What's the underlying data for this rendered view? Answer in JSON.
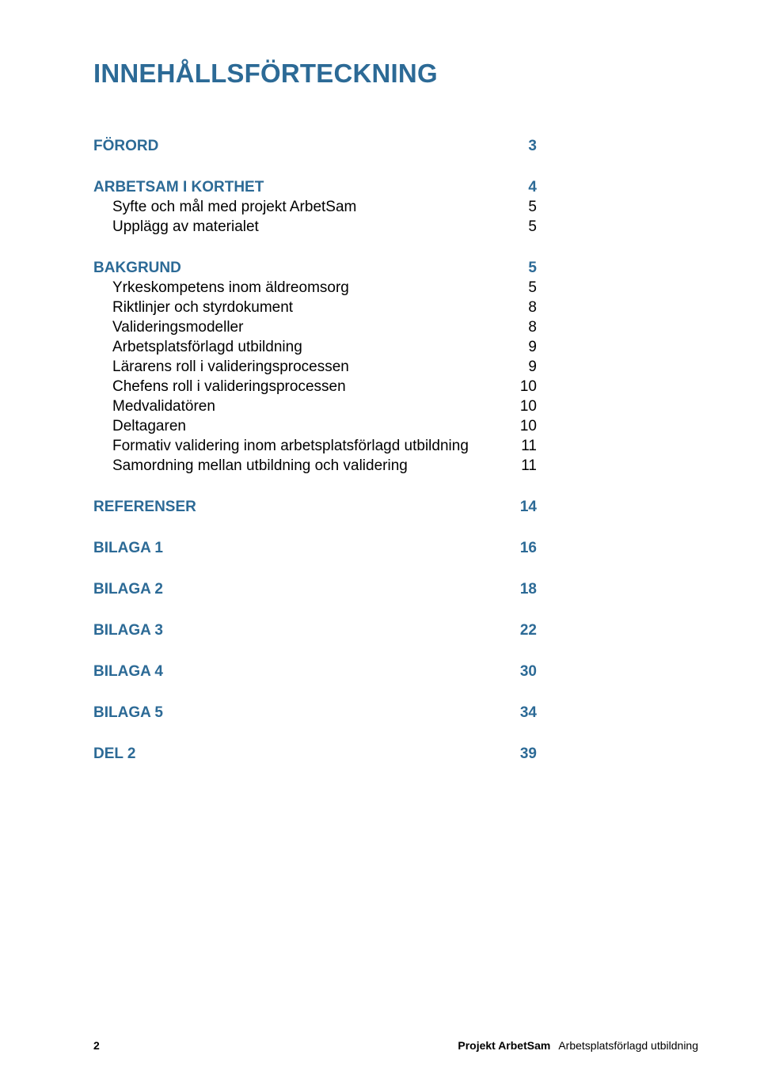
{
  "title_color": "#2c6a96",
  "section_color": "#2c6a96",
  "sub_color": "#000000",
  "title": "INNEHÅLLSFÖRTECKNING",
  "sections": [
    {
      "label": "FÖRORD",
      "page": "3",
      "subs": []
    },
    {
      "label": "ARBETSAM I KORTHET",
      "page": "4",
      "subs": [
        {
          "label": "Syfte och mål med projekt ArbetSam",
          "page": "5"
        },
        {
          "label": "Upplägg av materialet",
          "page": "5"
        }
      ]
    },
    {
      "label": "BAKGRUND",
      "page": "5",
      "subs": [
        {
          "label": "Yrkeskompetens inom äldreomsorg",
          "page": "5"
        },
        {
          "label": "Riktlinjer och styrdokument",
          "page": "8"
        },
        {
          "label": "Valideringsmodeller",
          "page": "8"
        },
        {
          "label": "Arbetsplatsförlagd utbildning",
          "page": "9"
        },
        {
          "label": "Lärarens roll i valideringsprocessen",
          "page": "9"
        },
        {
          "label": "Chefens roll i valideringsprocessen",
          "page": "10"
        },
        {
          "label": "Medvalidatören",
          "page": "10"
        },
        {
          "label": "Deltagaren",
          "page": "10"
        },
        {
          "label": "Formativ validering inom arbetsplatsförlagd utbildning",
          "page": "11"
        },
        {
          "label": "Samordning mellan utbildning och validering",
          "page": "11"
        }
      ]
    },
    {
      "label": "REFERENSER",
      "page": "14",
      "subs": []
    },
    {
      "label": "BILAGA 1",
      "page": "16",
      "subs": []
    },
    {
      "label": "BILAGA 2",
      "page": "18",
      "subs": []
    },
    {
      "label": "BILAGA 3",
      "page": "22",
      "subs": []
    },
    {
      "label": "BILAGA 4",
      "page": "30",
      "subs": []
    },
    {
      "label": "BILAGA 5",
      "page": "34",
      "subs": []
    },
    {
      "label": "DEL 2",
      "page": "39",
      "subs": []
    }
  ],
  "footer": {
    "page_number": "2",
    "brand": "Projekt ArbetSam",
    "subtitle": "Arbetsplatsförlagd utbildning"
  }
}
